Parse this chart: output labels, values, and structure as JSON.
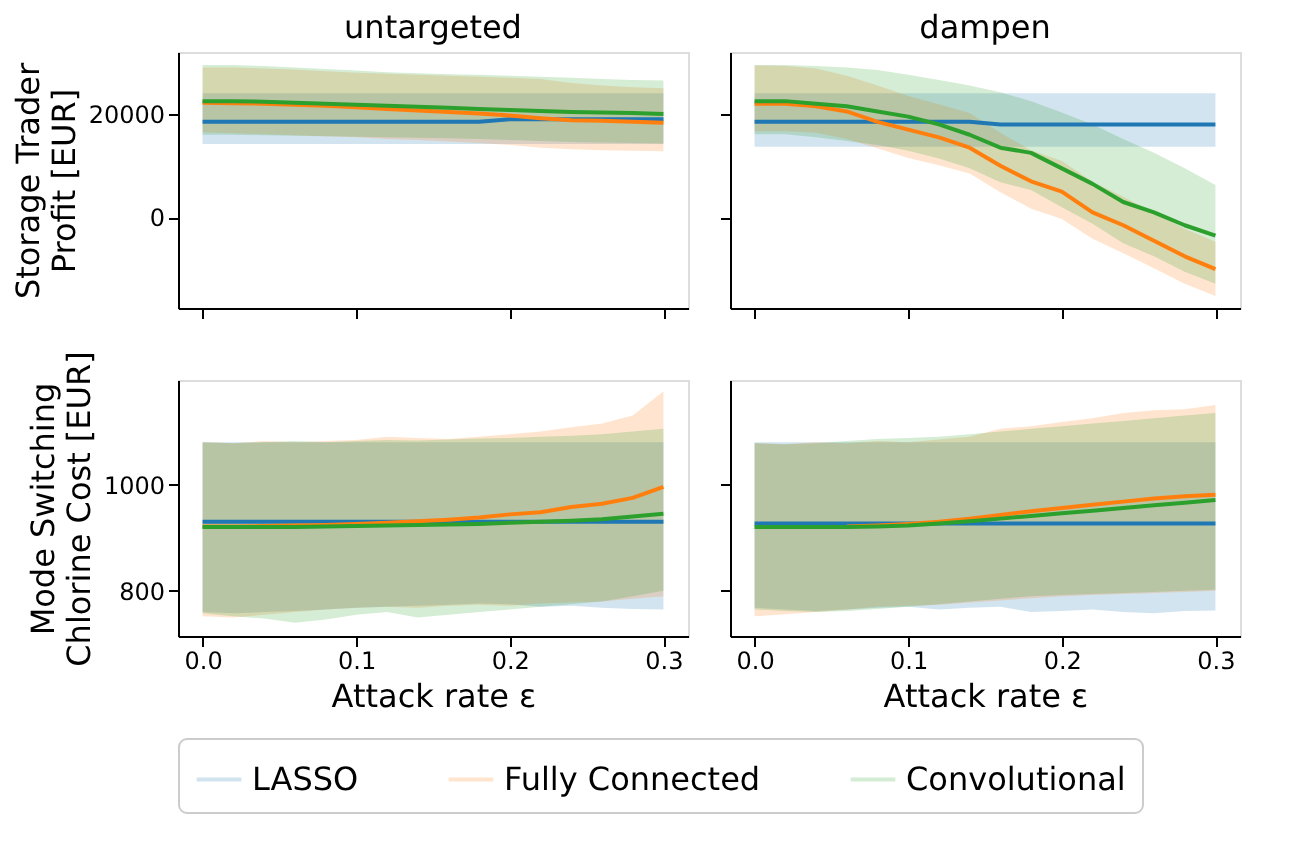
{
  "chart_data": [
    {
      "type": "line",
      "title": "untargeted",
      "ylabel": "Storage Trader\nProfit [EUR]",
      "tick_labels": "y",
      "grid": false,
      "legend": "bottom",
      "x": [
        0,
        0.02,
        0.04,
        0.06,
        0.08,
        0.1,
        0.12,
        0.14,
        0.16,
        0.18,
        0.2,
        0.22,
        0.24,
        0.26,
        0.28,
        0.3
      ],
      "xlim": [
        -0.016,
        0.316
      ],
      "xticks": [
        {
          "value": 0,
          "label": "0.0"
        },
        {
          "value": 0.1,
          "label": "0.1"
        },
        {
          "value": 0.2,
          "label": "0.2"
        },
        {
          "value": 0.3,
          "label": "0.3"
        }
      ],
      "ylim": [
        -17500,
        32000
      ],
      "yticks": [
        0,
        20000
      ],
      "series": [
        {
          "name": "LASSO",
          "color": "#1f77b4",
          "values": [
            18500,
            18500,
            18500,
            18500,
            18500,
            18500,
            18500,
            18500,
            18500,
            18500,
            19000,
            19000,
            19000,
            19000,
            19000,
            19000
          ],
          "upper": [
            24000,
            24000,
            24000,
            24000,
            24000,
            24000,
            24000,
            24000,
            24000,
            24000,
            24000,
            24000,
            24000,
            24000,
            24000,
            24000
          ],
          "lower": [
            14200,
            14200,
            14200,
            14200,
            14200,
            14200,
            14200,
            14200,
            14200,
            14200,
            14200,
            14200,
            14200,
            14200,
            14200,
            14200
          ]
        },
        {
          "name": "Fully Connected",
          "color": "#ff7f0e",
          "values": [
            22200,
            22100,
            22000,
            21800,
            21600,
            21300,
            21000,
            20700,
            20400,
            20100,
            19700,
            19200,
            18800,
            18700,
            18500,
            18300
          ],
          "upper": [
            29000,
            29000,
            28800,
            28600,
            28300,
            28000,
            27800,
            27600,
            27400,
            27200,
            27000,
            26800,
            26000,
            25500,
            25200,
            25000
          ],
          "lower": [
            16500,
            16300,
            16100,
            15900,
            15700,
            15500,
            15200,
            15000,
            14700,
            14400,
            14000,
            13500,
            13200,
            13000,
            12900,
            12800
          ]
        },
        {
          "name": "Convolutional",
          "color": "#2ca02c",
          "values": [
            22500,
            22500,
            22400,
            22200,
            22000,
            21800,
            21600,
            21400,
            21200,
            21000,
            20800,
            20600,
            20400,
            20300,
            20200,
            20000
          ],
          "upper": [
            29500,
            29500,
            29300,
            29000,
            28700,
            28400,
            28100,
            27900,
            27700,
            27600,
            27400,
            27200,
            27000,
            26800,
            26600,
            26500
          ],
          "lower": [
            16000,
            16000,
            15900,
            15800,
            15700,
            15600,
            15500,
            15400,
            15300,
            15200,
            15000,
            14800,
            14600,
            14500,
            14400,
            14300
          ]
        }
      ]
    },
    {
      "type": "line",
      "title": "dampen",
      "tick_labels": false,
      "grid": false,
      "x": [
        0,
        0.02,
        0.04,
        0.06,
        0.08,
        0.1,
        0.12,
        0.14,
        0.16,
        0.18,
        0.2,
        0.22,
        0.24,
        0.26,
        0.28,
        0.3
      ],
      "xlim": [
        -0.016,
        0.316
      ],
      "xticks": [
        {
          "value": 0,
          "label": "0.0"
        },
        {
          "value": 0.1,
          "label": "0.1"
        },
        {
          "value": 0.2,
          "label": "0.2"
        },
        {
          "value": 0.3,
          "label": "0.3"
        }
      ],
      "ylim": [
        -17500,
        32000
      ],
      "yticks": [
        0,
        20000
      ],
      "series": [
        {
          "name": "LASSO",
          "color": "#1f77b4",
          "values": [
            18500,
            18500,
            18500,
            18500,
            18500,
            18500,
            18500,
            18500,
            18000,
            18000,
            18000,
            18000,
            18000,
            18000,
            18000,
            18000
          ],
          "upper": [
            24000,
            24000,
            24000,
            24000,
            24000,
            24000,
            24000,
            24000,
            24000,
            24000,
            24000,
            24000,
            24000,
            24000,
            24000,
            24000
          ],
          "lower": [
            13700,
            13700,
            13700,
            13700,
            13700,
            13700,
            13700,
            13700,
            13700,
            13700,
            13700,
            13700,
            13700,
            13700,
            13700,
            13700
          ]
        },
        {
          "name": "Fully Connected",
          "color": "#ff7f0e",
          "values": [
            22000,
            22000,
            21500,
            20500,
            18500,
            17000,
            15500,
            13500,
            10000,
            7000,
            5000,
            1000,
            -1500,
            -4500,
            -7500,
            -10000
          ],
          "upper": [
            29400,
            29300,
            28800,
            27400,
            25500,
            23500,
            21900,
            20200,
            16400,
            13000,
            10900,
            6900,
            4000,
            900,
            -2200,
            -4700
          ],
          "lower": [
            16700,
            16700,
            16400,
            15200,
            13400,
            11500,
            10100,
            8500,
            4900,
            1700,
            -300,
            -4100,
            -6900,
            -9800,
            -12800,
            -15200
          ]
        },
        {
          "name": "Convolutional",
          "color": "#2ca02c",
          "values": [
            22500,
            22500,
            22000,
            21500,
            20500,
            19500,
            18000,
            16000,
            13500,
            12500,
            9500,
            6500,
            3000,
            1000,
            -1500,
            -3500
          ],
          "upper": [
            29500,
            29500,
            29300,
            29000,
            28500,
            27600,
            26600,
            25500,
            24200,
            22500,
            20300,
            18000,
            15200,
            12500,
            9500,
            6300
          ],
          "lower": [
            16100,
            16100,
            15500,
            14800,
            14000,
            12900,
            11400,
            9500,
            6800,
            5300,
            2000,
            -1200,
            -5000,
            -7500,
            -10500,
            -12800
          ]
        }
      ]
    },
    {
      "type": "line",
      "xlabel": "Attack rate ε",
      "ylabel": "Mode Switching\nChlorine Cost [EUR]",
      "grid": false,
      "x": [
        0,
        0.02,
        0.04,
        0.06,
        0.08,
        0.1,
        0.12,
        0.14,
        0.16,
        0.18,
        0.2,
        0.22,
        0.24,
        0.26,
        0.28,
        0.3
      ],
      "xlim": [
        -0.016,
        0.316
      ],
      "xticks": [
        {
          "value": 0,
          "label": "0.0"
        },
        {
          "value": 0.1,
          "label": "0.1"
        },
        {
          "value": 0.2,
          "label": "0.2"
        },
        {
          "value": 0.3,
          "label": "0.3"
        }
      ],
      "ylim": [
        715,
        1197
      ],
      "yticks": [
        800,
        1000
      ],
      "series": [
        {
          "name": "LASSO",
          "color": "#1f77b4",
          "values": [
            930,
            930,
            930,
            930,
            930,
            930,
            930,
            930,
            930,
            930,
            930,
            930,
            930,
            930,
            930,
            930
          ],
          "upper": [
            1080,
            1080,
            1080,
            1080,
            1080,
            1080,
            1080,
            1080,
            1080,
            1080,
            1080,
            1080,
            1080,
            1080,
            1080,
            1080
          ],
          "lower": [
            760,
            758,
            760,
            762,
            765,
            768,
            770,
            772,
            774,
            776,
            775,
            770,
            772,
            768,
            766,
            765
          ]
        },
        {
          "name": "Fully Connected",
          "color": "#ff7f0e",
          "values": [
            921,
            921,
            922,
            923,
            924,
            926,
            928,
            931,
            934,
            938,
            944,
            948,
            958,
            964,
            975,
            996
          ],
          "upper": [
            1080,
            1078,
            1082,
            1080,
            1082,
            1084,
            1090,
            1088,
            1086,
            1090,
            1095,
            1100,
            1108,
            1115,
            1130,
            1176
          ],
          "lower": [
            752,
            750,
            755,
            760,
            765,
            768,
            770,
            768,
            772,
            774,
            772,
            776,
            778,
            780,
            785,
            790
          ]
        },
        {
          "name": "Convolutional",
          "color": "#2ca02c",
          "values": [
            920,
            920,
            920,
            920,
            921,
            922,
            923,
            924,
            925,
            926,
            928,
            930,
            932,
            935,
            940,
            945
          ],
          "upper": [
            1080,
            1078,
            1080,
            1082,
            1080,
            1082,
            1084,
            1083,
            1085,
            1087,
            1088,
            1090,
            1092,
            1095,
            1100,
            1105
          ],
          "lower": [
            758,
            752,
            748,
            740,
            746,
            755,
            760,
            750,
            755,
            760,
            765,
            770,
            775,
            780,
            790,
            800
          ]
        }
      ]
    },
    {
      "type": "line",
      "xlabel": "Attack rate ε",
      "tick_labels": "x",
      "grid": false,
      "x": [
        0,
        0.02,
        0.04,
        0.06,
        0.08,
        0.1,
        0.12,
        0.14,
        0.16,
        0.18,
        0.2,
        0.22,
        0.24,
        0.26,
        0.28,
        0.3
      ],
      "xlim": [
        -0.016,
        0.316
      ],
      "xticks": [
        {
          "value": 0,
          "label": "0.0"
        },
        {
          "value": 0.1,
          "label": "0.1"
        },
        {
          "value": 0.2,
          "label": "0.2"
        },
        {
          "value": 0.3,
          "label": "0.3"
        }
      ],
      "ylim": [
        715,
        1197
      ],
      "yticks": [
        800,
        1000
      ],
      "series": [
        {
          "name": "LASSO",
          "color": "#1f77b4",
          "values": [
            927,
            927,
            927,
            927,
            927,
            927,
            927,
            927,
            927,
            927,
            927,
            927,
            927,
            927,
            927,
            927
          ],
          "upper": [
            1080,
            1080,
            1080,
            1080,
            1080,
            1080,
            1080,
            1080,
            1080,
            1080,
            1080,
            1080,
            1080,
            1080,
            1080,
            1080
          ],
          "lower": [
            768,
            765,
            762,
            765,
            768,
            770,
            765,
            768,
            770,
            760,
            762,
            765,
            760,
            758,
            762,
            763
          ]
        },
        {
          "name": "Fully Connected",
          "color": "#ff7f0e",
          "values": [
            null,
            null,
            null,
            921,
            923,
            926,
            930,
            936,
            943,
            950,
            956,
            962,
            968,
            974,
            978,
            981
          ],
          "upper": [
            1078,
            1076,
            1080,
            1078,
            1082,
            1080,
            1085,
            1090,
            1105,
            1110,
            1118,
            1125,
            1135,
            1140,
            1142,
            1150
          ],
          "lower": [
            752,
            756,
            760,
            765,
            770,
            772,
            774,
            778,
            782,
            786,
            790,
            792,
            794,
            796,
            798,
            800
          ]
        },
        {
          "name": "Convolutional",
          "color": "#2ca02c",
          "values": [
            920,
            920,
            920,
            920,
            921,
            923,
            927,
            931,
            936,
            941,
            946,
            951,
            956,
            961,
            966,
            971
          ],
          "upper": [
            1078,
            1076,
            1078,
            1082,
            1086,
            1088,
            1090,
            1095,
            1100,
            1105,
            1110,
            1115,
            1120,
            1125,
            1130,
            1135
          ],
          "lower": [
            765,
            762,
            760,
            762,
            766,
            770,
            775,
            780,
            785,
            790,
            792,
            794,
            796,
            798,
            800,
            802
          ]
        }
      ]
    }
  ]
}
